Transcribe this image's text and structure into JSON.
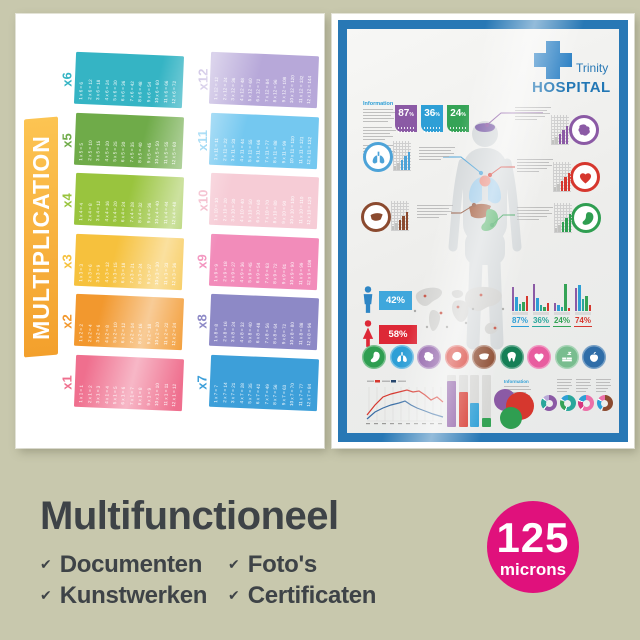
{
  "product": {
    "heading": "Multifunctioneel",
    "check_glyph": "✔",
    "features": [
      "Documenten",
      "Kunstwerken",
      "Foto's",
      "Certificaten"
    ],
    "badge": {
      "value": "125",
      "unit": "microns",
      "color": "#e0117c"
    }
  },
  "multiplication_poster": {
    "title": "MULTIPLICATION",
    "ribbon_colors": [
      "#fcc452",
      "#f3a02c"
    ],
    "tables": [
      {
        "label": "x6",
        "color": "#35b4c4",
        "rows": [
          "1 x 6 = 6",
          "2 x 6 = 12",
          "3 x 6 = 18",
          "4 x 6 = 24",
          "5 x 6 = 30",
          "6 x 6 = 36",
          "7 x 6 = 42",
          "8 x 6 = 48",
          "9 x 6 = 54",
          "10 x 6 = 60",
          "11 x 6 = 66",
          "12 x 6 = 72"
        ]
      },
      {
        "label": "x5",
        "color": "#6fab49",
        "rows": [
          "1 x 5 = 5",
          "2 x 5 = 10",
          "3 x 5 = 15",
          "4 x 5 = 20",
          "5 x 5 = 25",
          "6 x 5 = 30",
          "7 x 5 = 35",
          "8 x 5 = 40",
          "9 x 5 = 45",
          "10 x 5 = 50",
          "11 x 5 = 55",
          "12 x 5 = 60"
        ]
      },
      {
        "label": "x4",
        "color": "#99c43e",
        "rows": [
          "1 x 4 = 4",
          "2 x 4 = 8",
          "3 x 4 = 12",
          "4 x 4 = 16",
          "5 x 4 = 20",
          "6 x 4 = 24",
          "7 x 4 = 28",
          "8 x 4 = 32",
          "9 x 4 = 36",
          "10 x 4 = 40",
          "11 x 4 = 44",
          "12 x 4 = 48"
        ]
      },
      {
        "label": "x3",
        "color": "#f6c13d",
        "rows": [
          "1 x 3 = 3",
          "2 x 3 = 6",
          "3 x 3 = 9",
          "4 x 3 = 12",
          "5 x 3 = 15",
          "6 x 3 = 18",
          "7 x 3 = 21",
          "8 x 3 = 24",
          "9 x 3 = 27",
          "10 x 3 = 30",
          "11 x 3 = 33",
          "12 x 3 = 36"
        ]
      },
      {
        "label": "x2",
        "color": "#f2982e",
        "rows": [
          "1 x 2 = 2",
          "2 x 2 = 4",
          "3 x 2 = 6",
          "4 x 2 = 8",
          "5 x 2 = 10",
          "6 x 2 = 12",
          "7 x 2 = 14",
          "8 x 2 = 16",
          "9 x 2 = 18",
          "10 x 2 = 20",
          "11 x 2 = 22",
          "12 x 2 = 24"
        ]
      },
      {
        "label": "x1",
        "color": "#ef6f8e",
        "rows": [
          "1 x 1 = 1",
          "2 x 1 = 2",
          "3 x 1 = 3",
          "4 x 1 = 4",
          "5 x 1 = 5",
          "6 x 1 = 6",
          "7 x 1 = 7",
          "8 x 1 = 8",
          "9 x 1 = 9",
          "10 x 1 = 10",
          "11 x 1 = 11",
          "12 x 1 = 12"
        ]
      },
      {
        "label": "x12",
        "color": "#b7a8d9",
        "rows": [
          "1 x 12 = 12",
          "2 x 12 = 24",
          "3 x 12 = 36",
          "4 x 12 = 48",
          "5 x 12 = 60",
          "6 x 12 = 72",
          "7 x 12 = 84",
          "8 x 12 = 96",
          "9 x 12 = 108",
          "10 x 12 = 120",
          "11 x 12 = 132",
          "12 x 12 = 144"
        ]
      },
      {
        "label": "x11",
        "color": "#74c8f0",
        "rows": [
          "1 x 11 = 11",
          "2 x 11 = 22",
          "3 x 11 = 33",
          "4 x 11 = 44",
          "5 x 11 = 55",
          "6 x 11 = 66",
          "7 x 11 = 77",
          "8 x 11 = 88",
          "9 x 11 = 99",
          "10 x 11 = 110",
          "11 x 11 = 121",
          "12 x 11 = 132"
        ]
      },
      {
        "label": "x10",
        "color": "#f6ccd6",
        "label_color": "#f2b0c3",
        "rows": [
          "1 x 10 = 10",
          "2 x 10 = 20",
          "3 x 10 = 30",
          "4 x 10 = 40",
          "5 x 10 = 50",
          "6 x 10 = 60",
          "7 x 10 = 70",
          "8 x 10 = 80",
          "9 x 10 = 90",
          "10 x 10 = 100",
          "11 x 10 = 110",
          "12 x 10 = 120"
        ]
      },
      {
        "label": "x9",
        "color": "#f28cba",
        "rows": [
          "1 x 9 = 9",
          "2 x 9 = 18",
          "3 x 9 = 27",
          "4 x 9 = 36",
          "5 x 9 = 45",
          "6 x 9 = 54",
          "7 x 9 = 63",
          "8 x 9 = 72",
          "9 x 9 = 81",
          "10 x 9 = 90",
          "11 x 9 = 99",
          "12 x 9 = 108"
        ]
      },
      {
        "label": "x8",
        "color": "#8d89c6",
        "rows": [
          "1 x 8 = 8",
          "2 x 8 = 16",
          "3 x 8 = 24",
          "4 x 8 = 32",
          "5 x 8 = 40",
          "6 x 8 = 48",
          "7 x 8 = 56",
          "8 x 8 = 64",
          "9 x 8 = 72",
          "10 x 8 = 80",
          "11 x 8 = 88",
          "12 x 8 = 96"
        ]
      },
      {
        "label": "x7",
        "color": "#3d9fd9",
        "rows": [
          "1 x 7 = 7",
          "2 x 7 = 14",
          "3 x 7 = 21",
          "4 x 7 = 28",
          "5 x 7 = 35",
          "6 x 7 = 42",
          "7 x 7 = 49",
          "8 x 7 = 56",
          "9 x 7 = 63",
          "10 x 7 = 70",
          "11 x 7 = 77",
          "12 x 7 = 84"
        ]
      }
    ]
  },
  "hospital_poster": {
    "border_color": "#2878b5",
    "brand": {
      "line1": "Trinity",
      "line2": "HOSPITAL",
      "color": "#2277b5"
    },
    "info_title": "Information",
    "info_title_2": "Information",
    "top_badges": [
      {
        "value": "87",
        "unit": "%",
        "color": "#8b5aa5"
      },
      {
        "value": "36",
        "unit": "%",
        "color": "#2e9fd6"
      },
      {
        "value": "24",
        "unit": "%",
        "color": "#35a356"
      }
    ],
    "callouts": [
      {
        "organ": "brain",
        "color": "#8b5aa5"
      },
      {
        "organ": "lungs",
        "color": "#4da3d8"
      },
      {
        "organ": "heart",
        "color": "#d6372e"
      },
      {
        "organ": "liver",
        "color": "#8b4a2f"
      },
      {
        "organ": "stomach",
        "color": "#2f9e51"
      }
    ],
    "gender": [
      {
        "icon": "male-icon",
        "value": "42%",
        "color": "#3fa7dc"
      },
      {
        "icon": "female-icon",
        "value": "58%",
        "color": "#dd2836"
      }
    ],
    "region_stats": [
      {
        "value": "87%",
        "color": "#2e9fd6",
        "bars": [
          24,
          14,
          7,
          9,
          15
        ]
      },
      {
        "value": "36%",
        "color": "#2aa79b",
        "bars": [
          27,
          13,
          6,
          4,
          8
        ]
      },
      {
        "value": "24%",
        "color": "#35a356",
        "bars": [
          8,
          6,
          4,
          27,
          3
        ]
      },
      {
        "value": "74%",
        "color": "#d6372e",
        "bars": [
          23,
          26,
          12,
          15,
          6
        ]
      }
    ],
    "organ_icons": [
      {
        "name": "stomach-icon",
        "color": "#2f9e51"
      },
      {
        "name": "lungs-icon",
        "color": "#2e9fd6"
      },
      {
        "name": "brain-icon",
        "color": "#8b5aa5"
      },
      {
        "name": "kidney-icon",
        "color": "#d6372e"
      },
      {
        "name": "liver-icon",
        "color": "#8b4a2f"
      },
      {
        "name": "tooth-icon",
        "color": "#157f56"
      },
      {
        "name": "heart-icon",
        "color": "#e85d9f"
      },
      {
        "name": "bed-icon",
        "color": "#79bd8f"
      },
      {
        "name": "apple-icon",
        "color": "#2f6da8"
      }
    ],
    "bottom_bars": [
      {
        "color": "#8b5aa5",
        "h": 88
      },
      {
        "color": "#d6372e",
        "h": 68
      },
      {
        "color": "#2e9fd6",
        "h": 46
      },
      {
        "color": "#35a356",
        "h": 18
      }
    ],
    "venn": [
      {
        "color": "#8b5aa5"
      },
      {
        "color": "#d6372e"
      },
      {
        "color": "#2f9e51"
      }
    ],
    "donuts": [
      {
        "segments": [
          [
            "#8b5aa5",
            60
          ],
          [
            "#ffffff",
            3
          ],
          [
            "#2aa79b",
            21
          ],
          [
            "#ffffff",
            3
          ],
          [
            "#b9a9d8",
            13
          ]
        ]
      },
      {
        "segments": [
          [
            "#2aa79b",
            54
          ],
          [
            "#ffffff",
            3
          ],
          [
            "#35a356",
            24
          ],
          [
            "#ffffff",
            3
          ],
          [
            "#2e9fd6",
            16
          ]
        ]
      },
      {
        "segments": [
          [
            "#ec6fa8",
            58
          ],
          [
            "#ffffff",
            3
          ],
          [
            "#d6377e",
            18
          ],
          [
            "#ffffff",
            3
          ],
          [
            "#2e9fd6",
            18
          ]
        ]
      },
      {
        "segments": [
          [
            "#8b4a2f",
            56
          ],
          [
            "#ffffff",
            3
          ],
          [
            "#2e9fd6",
            23
          ],
          [
            "#ffffff",
            3
          ],
          [
            "#ec6fa8",
            15
          ]
        ]
      }
    ]
  }
}
